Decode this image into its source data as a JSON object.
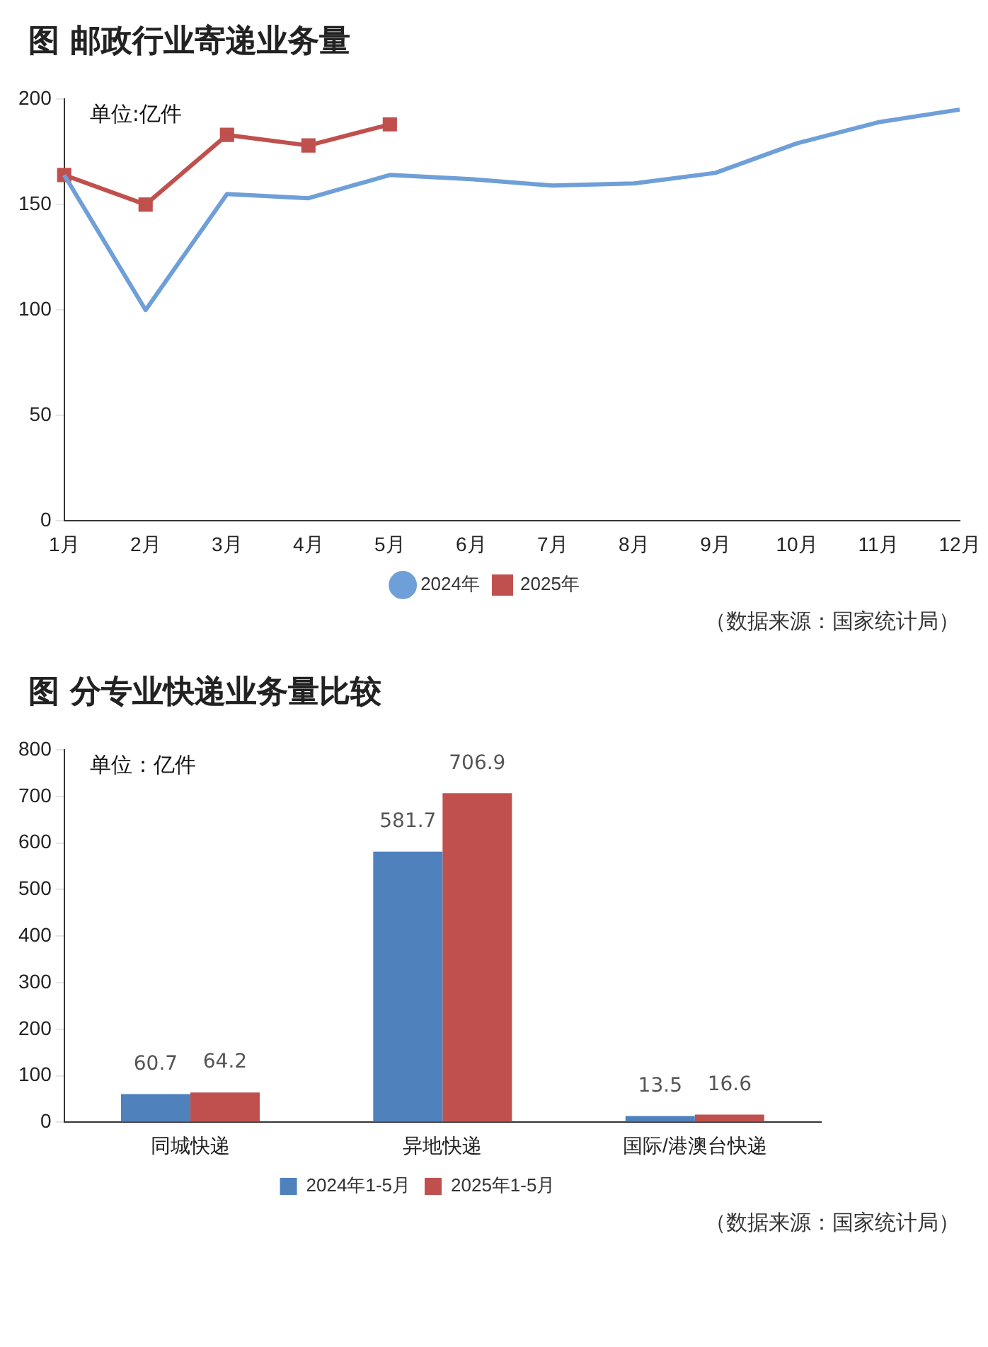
{
  "chart_data": [
    {
      "type": "line",
      "title": "图  邮政行业寄递业务量",
      "categories": [
        "1月",
        "2月",
        "3月",
        "4月",
        "5月",
        "6月",
        "7月",
        "8月",
        "9月",
        "10月",
        "11月",
        "12月"
      ],
      "series": [
        {
          "name": "2024年",
          "color": "#6f9fd8",
          "marker": "none",
          "values": [
            164,
            100,
            155,
            153,
            164,
            162,
            159,
            160,
            165,
            179,
            189,
            195
          ]
        },
        {
          "name": "2025年",
          "color": "#c0504d",
          "marker": "square",
          "values": [
            164,
            150,
            183,
            178,
            188,
            null,
            null,
            null,
            null,
            null,
            null,
            null
          ]
        }
      ],
      "ylim": [
        0,
        200
      ],
      "yticks": [
        0,
        50,
        100,
        150,
        200
      ],
      "grid": false,
      "legend": "bottom",
      "line_style": "solid",
      "annotations": [
        "单位:亿件",
        "（数据来源：国家统计局）"
      ]
    },
    {
      "type": "bar",
      "title": "图  分专业快递业务量比较",
      "categories": [
        "同城快递",
        "异地快递",
        "国际/港澳台快递"
      ],
      "series": [
        {
          "name": "2024年1-5月",
          "color": "#4f81bd",
          "values": [
            60.7,
            581.7,
            13.5
          ]
        },
        {
          "name": "2025年1-5月",
          "color": "#c0504d",
          "values": [
            64.2,
            706.9,
            16.6
          ]
        }
      ],
      "ylim": [
        0,
        800
      ],
      "yticks": [
        0,
        100,
        200,
        300,
        400,
        500,
        600,
        700,
        800
      ],
      "grid": false,
      "legend": "bottom",
      "data_labels": true,
      "annotations": [
        "单位：亿件",
        "（数据来源：国家统计局）"
      ]
    }
  ]
}
